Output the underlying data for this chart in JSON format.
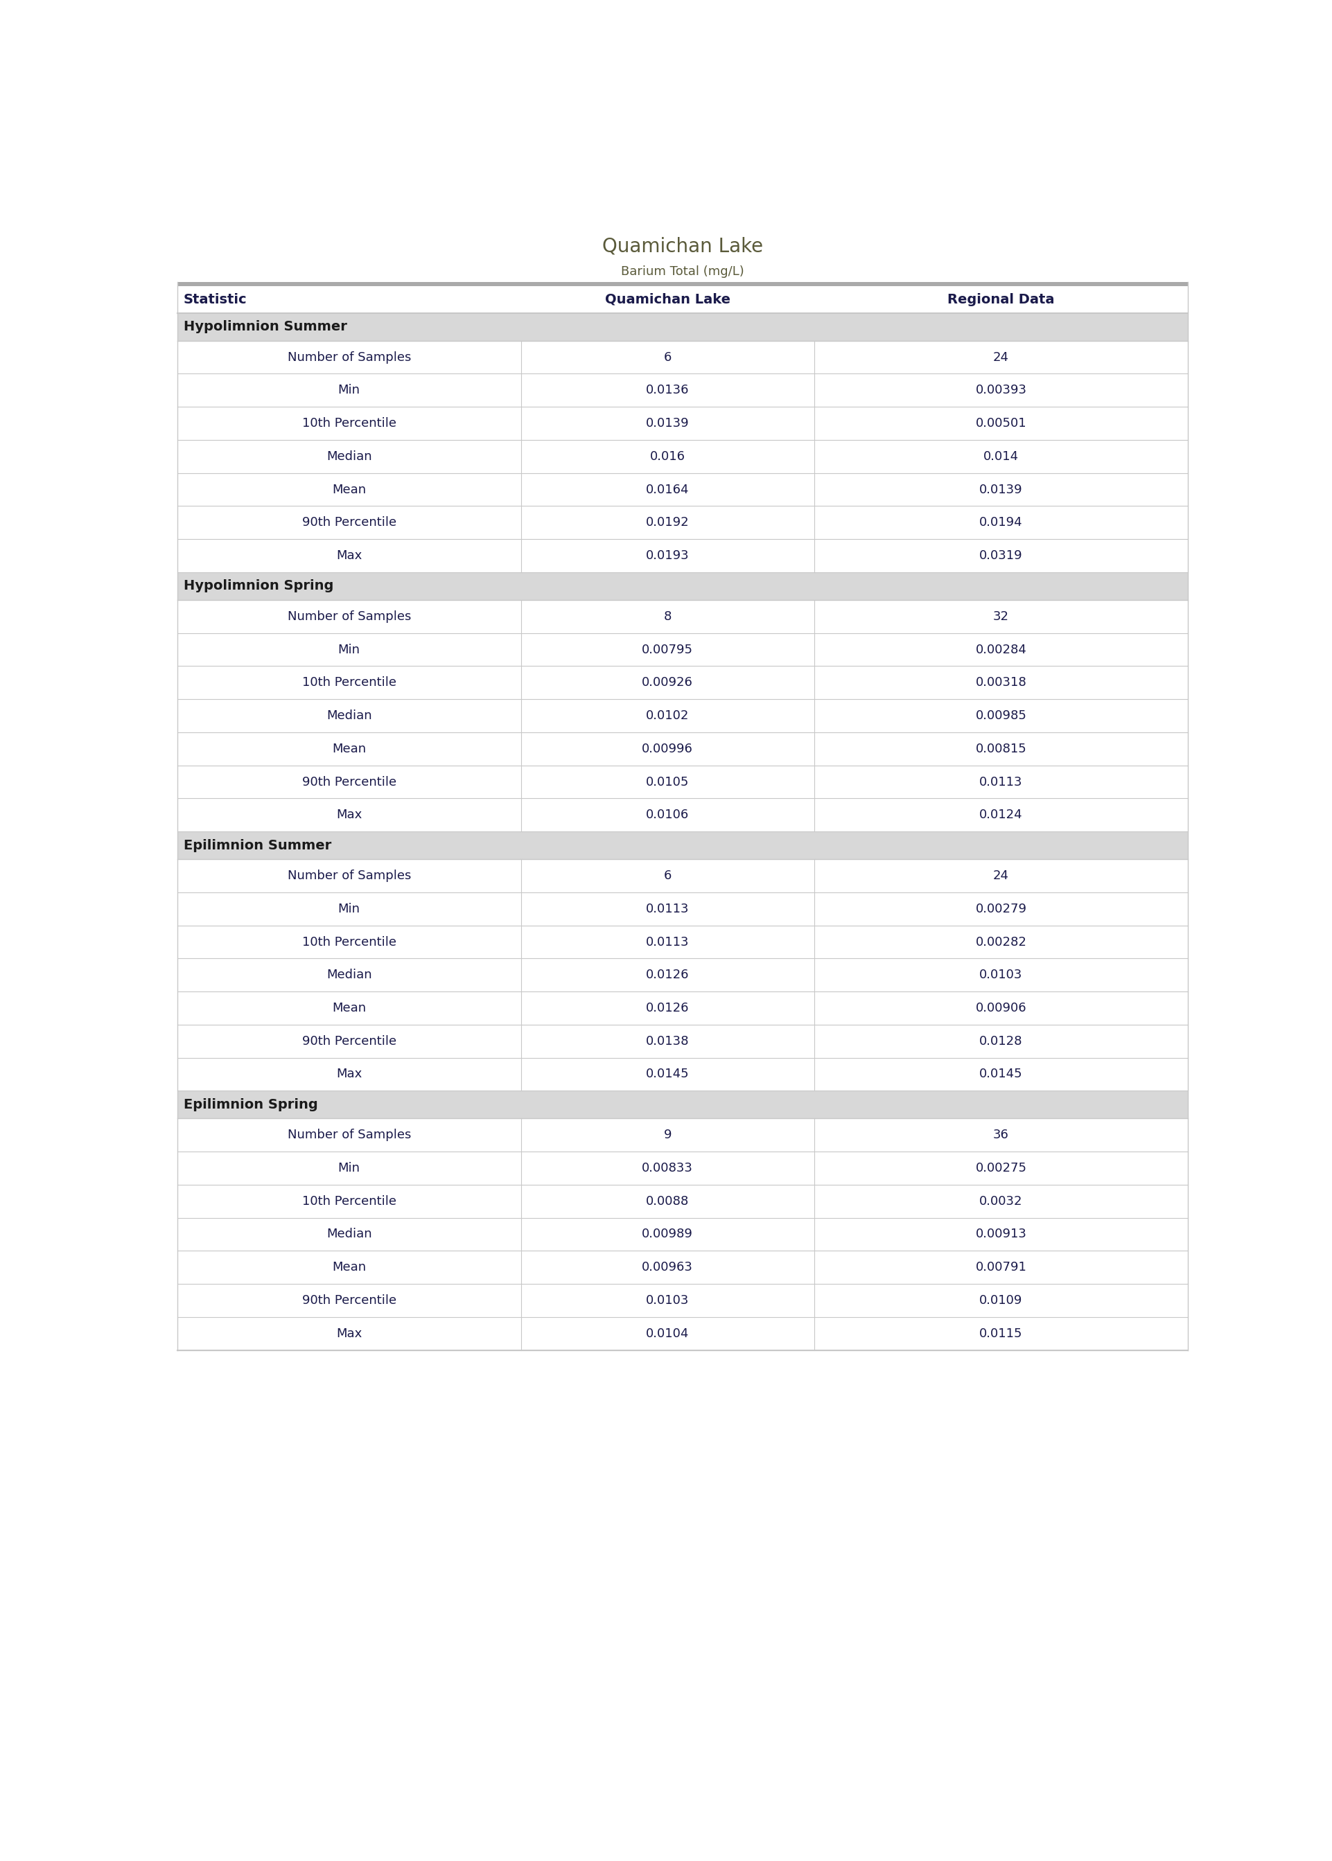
{
  "title": "Quamichan Lake",
  "subtitle": "Barium Total (mg/L)",
  "col_header": [
    "Statistic",
    "Quamichan Lake",
    "Regional Data"
  ],
  "sections": [
    {
      "name": "Hypolimnion Summer",
      "rows": [
        [
          "Number of Samples",
          "6",
          "24"
        ],
        [
          "Min",
          "0.0136",
          "0.00393"
        ],
        [
          "10th Percentile",
          "0.0139",
          "0.00501"
        ],
        [
          "Median",
          "0.016",
          "0.014"
        ],
        [
          "Mean",
          "0.0164",
          "0.0139"
        ],
        [
          "90th Percentile",
          "0.0192",
          "0.0194"
        ],
        [
          "Max",
          "0.0193",
          "0.0319"
        ]
      ]
    },
    {
      "name": "Hypolimnion Spring",
      "rows": [
        [
          "Number of Samples",
          "8",
          "32"
        ],
        [
          "Min",
          "0.00795",
          "0.00284"
        ],
        [
          "10th Percentile",
          "0.00926",
          "0.00318"
        ],
        [
          "Median",
          "0.0102",
          "0.00985"
        ],
        [
          "Mean",
          "0.00996",
          "0.00815"
        ],
        [
          "90th Percentile",
          "0.0105",
          "0.0113"
        ],
        [
          "Max",
          "0.0106",
          "0.0124"
        ]
      ]
    },
    {
      "name": "Epilimnion Summer",
      "rows": [
        [
          "Number of Samples",
          "6",
          "24"
        ],
        [
          "Min",
          "0.0113",
          "0.00279"
        ],
        [
          "10th Percentile",
          "0.0113",
          "0.00282"
        ],
        [
          "Median",
          "0.0126",
          "0.0103"
        ],
        [
          "Mean",
          "0.0126",
          "0.00906"
        ],
        [
          "90th Percentile",
          "0.0138",
          "0.0128"
        ],
        [
          "Max",
          "0.0145",
          "0.0145"
        ]
      ]
    },
    {
      "name": "Epilimnion Spring",
      "rows": [
        [
          "Number of Samples",
          "9",
          "36"
        ],
        [
          "Min",
          "0.00833",
          "0.00275"
        ],
        [
          "10th Percentile",
          "0.0088",
          "0.0032"
        ],
        [
          "Median",
          "0.00989",
          "0.00913"
        ],
        [
          "Mean",
          "0.00963",
          "0.00791"
        ],
        [
          "90th Percentile",
          "0.0103",
          "0.0109"
        ],
        [
          "Max",
          "0.0104",
          "0.0115"
        ]
      ]
    }
  ],
  "title_color": "#5a5a3a",
  "subtitle_color": "#5a5a3a",
  "header_text_color": "#1a1a4a",
  "section_header_bg": "#d8d8d8",
  "section_header_text_color": "#1a1a1a",
  "row_bg_white": "#ffffff",
  "separator_color": "#c8c8c8",
  "top_bar_color": "#aaaaaa",
  "data_text_color": "#1a1a4a",
  "statistic_text_color": "#1a1a4a",
  "title_fontsize": 20,
  "subtitle_fontsize": 13,
  "header_fontsize": 14,
  "section_fontsize": 14,
  "data_fontsize": 13,
  "col1_divider": 0.34,
  "col2_divider": 0.63
}
